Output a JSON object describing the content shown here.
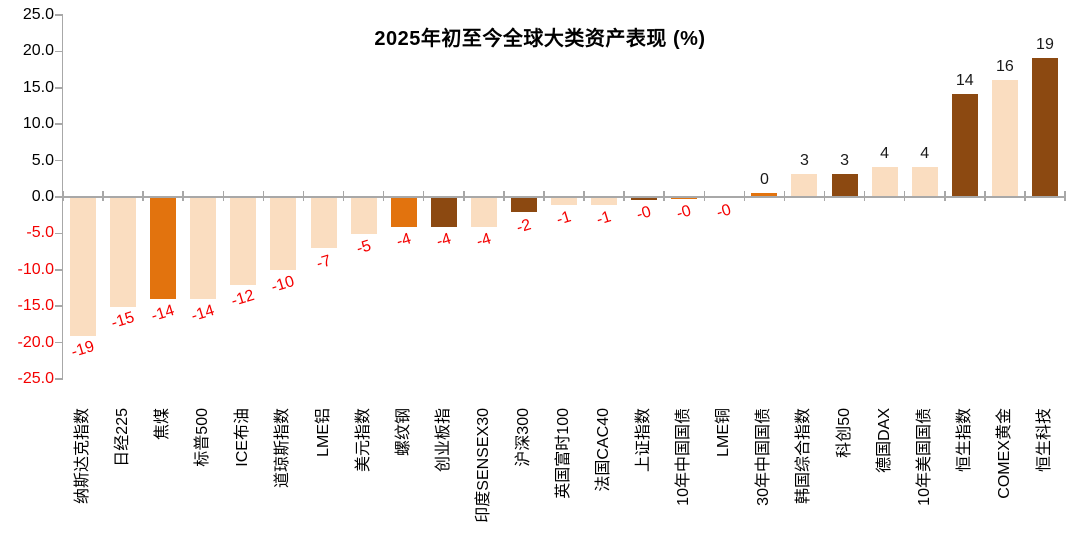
{
  "chart_data": {
    "type": "bar",
    "title": "2025年初至今全球大类资产表现 (%)",
    "xlabel": "",
    "ylabel": "",
    "ylim": [
      -25,
      25
    ],
    "ytick_interval": 5,
    "y_ticks": [
      "25.0",
      "20.0",
      "15.0",
      "10.0",
      "5.0",
      "0.0",
      "-5.0",
      "-10.0",
      "-15.0",
      "-20.0",
      "-25.0"
    ],
    "grid": false,
    "legend": "none",
    "series": [
      {
        "name": "纳斯达克指数",
        "value": -19,
        "label": "-19",
        "color": "light"
      },
      {
        "name": "日经225",
        "value": -15,
        "label": "-15",
        "color": "light"
      },
      {
        "name": "焦煤",
        "value": -14,
        "label": "-14",
        "color": "orange"
      },
      {
        "name": "标普500",
        "value": -14,
        "label": "-14",
        "color": "light"
      },
      {
        "name": "ICE布油",
        "value": -12,
        "label": "-12",
        "color": "light"
      },
      {
        "name": "道琼斯指数",
        "value": -10,
        "label": "-10",
        "color": "light"
      },
      {
        "name": "LME铝",
        "value": -7,
        "label": "-7",
        "color": "light"
      },
      {
        "name": "美元指数",
        "value": -5,
        "label": "-5",
        "color": "light"
      },
      {
        "name": "螺纹钢",
        "value": -4,
        "label": "-4",
        "color": "orange"
      },
      {
        "name": "创业板指",
        "value": -4,
        "label": "-4",
        "color": "brown"
      },
      {
        "name": "印度SENSEX30",
        "value": -4,
        "label": "-4",
        "color": "light"
      },
      {
        "name": "沪深300",
        "value": -2,
        "label": "-2",
        "color": "brown"
      },
      {
        "name": "英国富时100",
        "value": -1,
        "label": "-1",
        "color": "light"
      },
      {
        "name": "法国CAC40",
        "value": -1,
        "label": "-1",
        "color": "light"
      },
      {
        "name": "上证指数",
        "value": -0.3,
        "label": "-0",
        "color": "brown"
      },
      {
        "name": "10年中国国债",
        "value": -0.2,
        "label": "-0",
        "color": "orange"
      },
      {
        "name": "LME铜",
        "value": -0.05,
        "label": "-0",
        "color": "light"
      },
      {
        "name": "30年中国国债",
        "value": 0.4,
        "label": "0",
        "color": "orange"
      },
      {
        "name": "韩国综合指数",
        "value": 3,
        "label": "3",
        "color": "light"
      },
      {
        "name": "科创50",
        "value": 3,
        "label": "3",
        "color": "brown"
      },
      {
        "name": "德国DAX",
        "value": 4,
        "label": "4",
        "color": "light"
      },
      {
        "name": "10年美国国债",
        "value": 4,
        "label": "4",
        "color": "light"
      },
      {
        "name": "恒生指数",
        "value": 14,
        "label": "14",
        "color": "brown"
      },
      {
        "name": "COMEX黄金",
        "value": 16,
        "label": "16",
        "color": "light"
      },
      {
        "name": "恒生科技",
        "value": 19,
        "label": "19",
        "color": "brown"
      }
    ],
    "colors": {
      "light": "#FADDC0",
      "orange": "#E2730E",
      "brown": "#8C4911",
      "axis": "#A8A8A8",
      "value_label_positive": "#1A1A1A",
      "value_label_negative": "#F40000",
      "ytick_label_positive": "#000000",
      "ytick_label_negative": "#F40000"
    }
  }
}
